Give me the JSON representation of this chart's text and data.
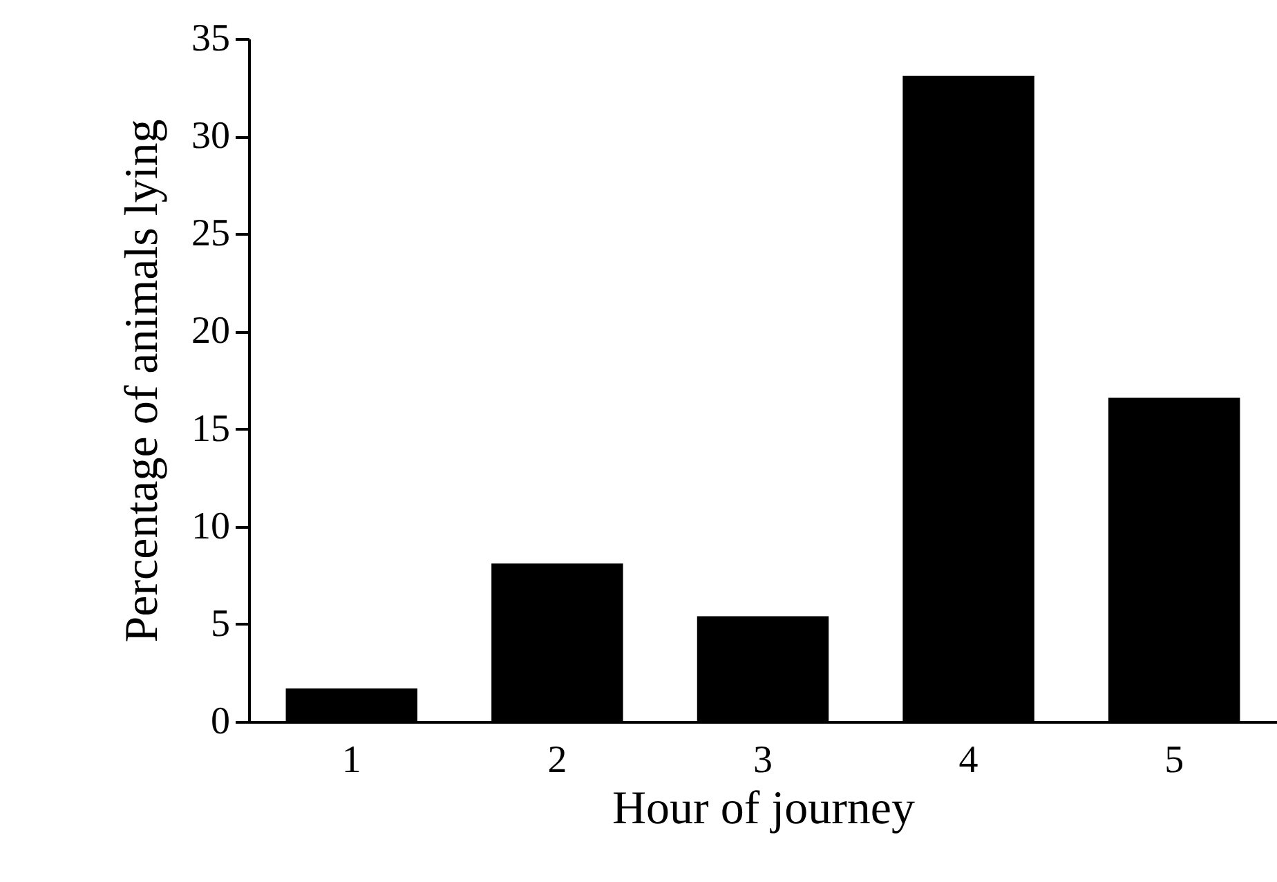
{
  "chart_data": {
    "type": "bar",
    "xlabel": "Hour of journey",
    "ylabel": "Percentage of animals lying",
    "categories": [
      "1",
      "2",
      "3",
      "4",
      "5"
    ],
    "values": [
      1.7,
      8.1,
      5.4,
      33.1,
      16.6
    ],
    "color": "#000000",
    "ylim": [
      0,
      35
    ],
    "yticks": [
      0,
      5,
      10,
      15,
      20,
      25,
      30,
      35
    ],
    "grid": false
  }
}
